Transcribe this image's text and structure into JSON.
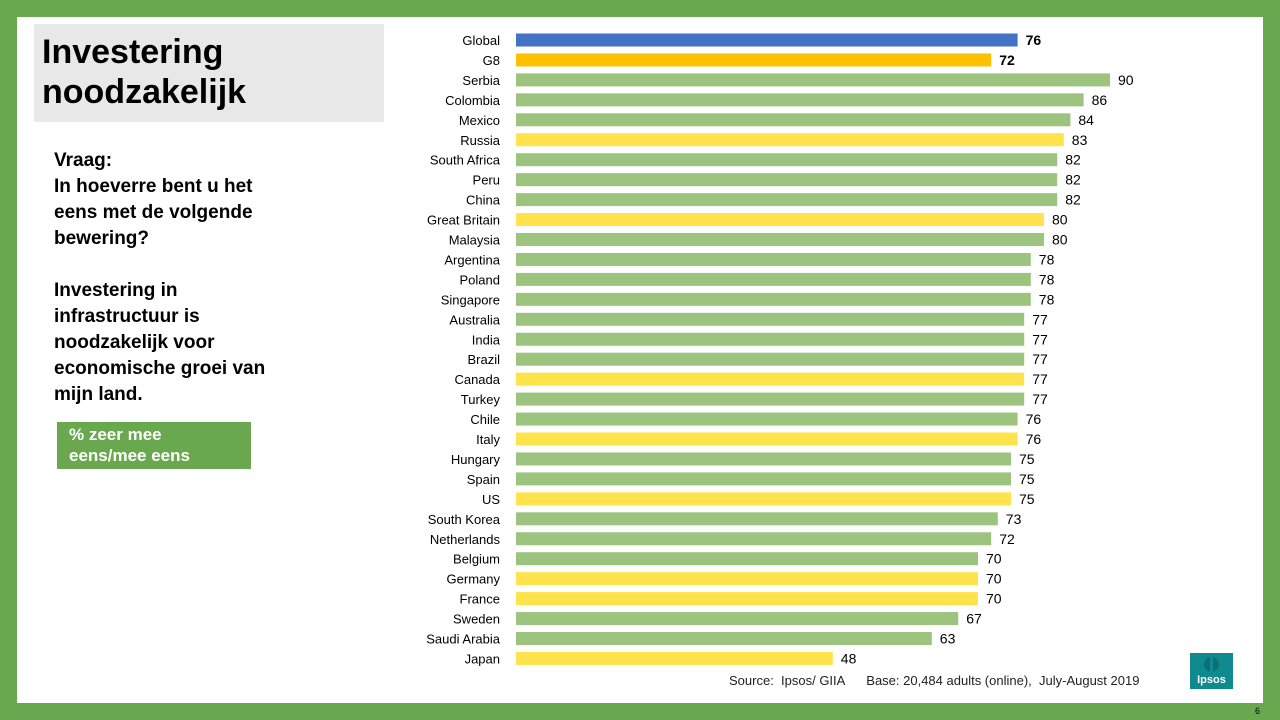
{
  "title": {
    "line1": "Investering",
    "line2": "noodzakelijk"
  },
  "question": {
    "lines1": [
      "Vraag:",
      "In hoeverre bent u het",
      "eens met de volgende",
      "bewering?"
    ],
    "lines2": [
      "Investering in",
      "infrastructuur is",
      "noodzakelijk voor",
      "economische groei van",
      "mijn land."
    ]
  },
  "legend_box": {
    "line1": "% zeer mee",
    "line2": "eens/mee eens"
  },
  "source": "Source:  Ipsos/ GIIA      Base: 20,484 adults (online),  July-August 2019",
  "logo_text": "Ipsos",
  "page_number": "6",
  "colors": {
    "global": "#4472c4",
    "g8_aggregate": "#ffc000",
    "g8_country": "#ffe34d",
    "other_country": "#9cc47f",
    "frame": "#6aa84f"
  },
  "chart_data": {
    "type": "bar",
    "orientation": "horizontal",
    "categories": [
      "Global",
      "G8",
      "Serbia",
      "Colombia",
      "Mexico",
      "Russia",
      "South Africa",
      "Peru",
      "China",
      "Great Britain",
      "Malaysia",
      "Argentina",
      "Poland",
      "Singapore",
      "Australia",
      "India",
      "Brazil",
      "Canada",
      "Turkey",
      "Chile",
      "Italy",
      "Hungary",
      "Spain",
      "US",
      "South Korea",
      "Netherlands",
      "Belgium",
      "Germany",
      "France",
      "Sweden",
      "Saudi Arabia",
      "Japan"
    ],
    "values": [
      76,
      72,
      90,
      86,
      84,
      83,
      82,
      82,
      82,
      80,
      80,
      78,
      78,
      78,
      77,
      77,
      77,
      77,
      77,
      76,
      76,
      75,
      75,
      75,
      73,
      72,
      70,
      70,
      70,
      67,
      63,
      48
    ],
    "groups": [
      "global",
      "g8_aggregate",
      "other",
      "other",
      "other",
      "g8",
      "other",
      "other",
      "other",
      "g8",
      "other",
      "other",
      "other",
      "other",
      "other",
      "other",
      "other",
      "g8",
      "other",
      "other",
      "g8",
      "other",
      "other",
      "g8",
      "other",
      "other",
      "other",
      "g8",
      "g8",
      "other",
      "other",
      "g8"
    ],
    "xlim": [
      0,
      100
    ],
    "grid": false
  }
}
